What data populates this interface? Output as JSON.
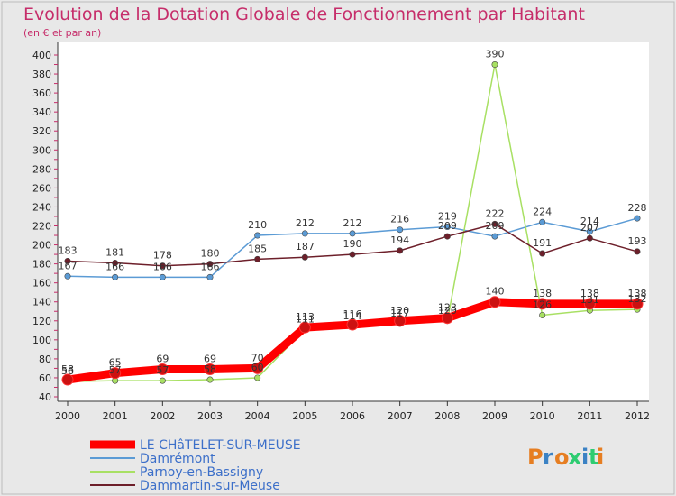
{
  "chart_data": {
    "type": "line",
    "title": "Evolution de la Dotation Globale de Fonctionnement par Habitant",
    "subtitle": "(en € et par an)",
    "xlabel": "",
    "ylabel": "",
    "ylim": [
      40,
      400
    ],
    "ytick_step": 20,
    "categories": [
      "2000",
      "2001",
      "2002",
      "2003",
      "2004",
      "2005",
      "2006",
      "2007",
      "2008",
      "2009",
      "2010",
      "2011",
      "2012"
    ],
    "series": [
      {
        "name": "Damrémont",
        "color": "#5b9bd5",
        "values": [
          167,
          166,
          166,
          166,
          210,
          212,
          212,
          216,
          219,
          209,
          224,
          214,
          228
        ],
        "labels": [
          "167",
          "166",
          "166",
          "166",
          "210",
          "212",
          "212",
          "216",
          "219",
          "209",
          "224",
          "214",
          "228"
        ]
      },
      {
        "name": "Parnoy-en-Bassigny",
        "color": "#a8e063",
        "values": [
          56,
          57,
          57,
          58,
          60,
          111,
          114,
          117,
          120,
          390,
          126,
          131,
          132
        ],
        "labels": [
          "56",
          "57",
          "57",
          "58",
          "60",
          "111",
          "114",
          "117",
          "120",
          "390",
          "126",
          "131",
          "132"
        ]
      },
      {
        "name": "Dammartin-sur-Meuse",
        "color": "#6d1f2a",
        "values": [
          183,
          181,
          178,
          180,
          185,
          187,
          190,
          194,
          209,
          222,
          191,
          207,
          193
        ],
        "labels": [
          "183",
          "181",
          "178",
          "180",
          "185",
          "187",
          "190",
          "194",
          "209",
          "222",
          "191",
          "207",
          "193"
        ]
      },
      {
        "name": "LE CHâTELET-SUR-MEUSE",
        "color": "#ff0000",
        "values": [
          58,
          65,
          69,
          69,
          70,
          113,
          116,
          120,
          123,
          140,
          138,
          138,
          138
        ],
        "labels": [
          "58",
          "65",
          "69",
          "69",
          "70",
          "113",
          "116",
          "120",
          "123",
          "140",
          "138",
          "138",
          "138"
        ]
      }
    ],
    "legend": {
      "placement": "bottom-left",
      "entries": [
        "LE CHâTELET-SUR-MEUSE",
        "Damrémont",
        "Parnoy-en-Bassigny",
        "Dammartin-sur-Meuse"
      ]
    },
    "grid": false
  },
  "logo": {
    "text": "Proxiti",
    "colors": [
      "#e67e22",
      "#3b82c4",
      "#e67e22",
      "#2ecc71",
      "#3b82c4",
      "#2ecc71",
      "#e67e22"
    ]
  }
}
